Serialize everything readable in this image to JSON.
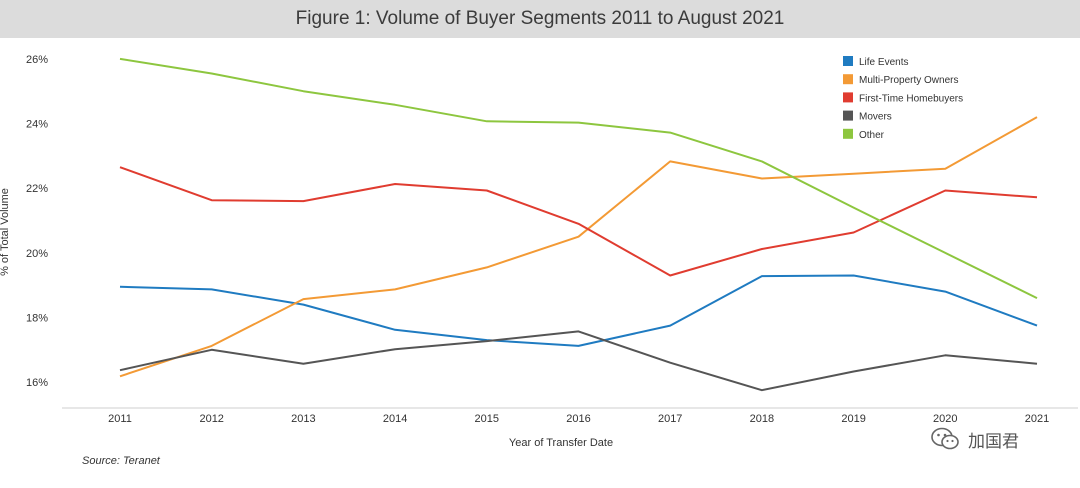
{
  "title": "Figure 1: Volume of Buyer Segments 2011 to August 2021",
  "source": "Source: Teranet",
  "watermark": "加国君",
  "chart_data": {
    "type": "line",
    "title": "Figure 1: Volume of Buyer Segments 2011 to August 2021",
    "xlabel": "Year of Transfer Date",
    "ylabel": "% of Total Volume",
    "x": [
      "2011",
      "2012",
      "2013",
      "2014",
      "2015",
      "2016",
      "2017",
      "2018",
      "2019",
      "2020",
      "2021"
    ],
    "ylim": [
      15.2,
      26.4
    ],
    "yticks": [
      16,
      18,
      20,
      22,
      24,
      26
    ],
    "ytick_labels": [
      "16%",
      "18%",
      "20%",
      "22%",
      "24%",
      "26%"
    ],
    "grid": false,
    "legend": "top-right",
    "series": [
      {
        "name": "Life Events",
        "color": "#1f7bc1",
        "values": [
          18.95,
          18.87,
          18.4,
          17.62,
          17.3,
          17.12,
          17.75,
          19.28,
          19.3,
          18.8,
          17.75
        ]
      },
      {
        "name": "Multi-Property Owners",
        "color": "#f39a35",
        "values": [
          16.18,
          17.12,
          18.57,
          18.87,
          19.55,
          20.5,
          22.83,
          22.3,
          22.45,
          22.6,
          24.2
        ]
      },
      {
        "name": "First-Time Homebuyers",
        "color": "#e03c30",
        "values": [
          22.65,
          21.63,
          21.6,
          22.13,
          21.93,
          20.9,
          19.3,
          20.12,
          20.63,
          21.93,
          21.72
        ]
      },
      {
        "name": "Movers",
        "color": "#555555",
        "values": [
          16.37,
          17.0,
          16.57,
          17.02,
          17.27,
          17.57,
          16.6,
          15.75,
          16.33,
          16.83,
          16.57
        ]
      },
      {
        "name": "Other",
        "color": "#8dc63f",
        "values": [
          26.0,
          25.55,
          25.0,
          24.58,
          24.07,
          24.03,
          23.72,
          22.83,
          21.4,
          20.0,
          18.6
        ]
      }
    ]
  }
}
